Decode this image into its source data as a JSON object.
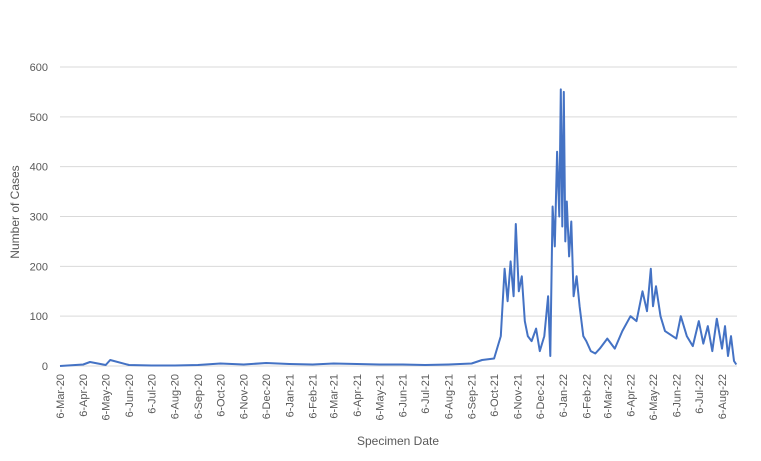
{
  "chart_data": {
    "type": "line",
    "xlabel": "Specimen Date",
    "ylabel": "Number of Cases",
    "ylim": [
      0,
      600
    ],
    "yticks": [
      0,
      100,
      200,
      300,
      400,
      500,
      600
    ],
    "grid": true,
    "legend": "none",
    "x_tick_labels": [
      "6-Mar-20",
      "6-Apr-20",
      "6-May-20",
      "6-Jun-20",
      "6-Jul-20",
      "6-Aug-20",
      "6-Sep-20",
      "6-Oct-20",
      "6-Nov-20",
      "6-Dec-20",
      "6-Jan-21",
      "6-Feb-21",
      "6-Mar-21",
      "6-Apr-21",
      "6-May-21",
      "6-Jun-21",
      "6-Jul-21",
      "6-Aug-21",
      "6-Sep-21",
      "6-Oct-21",
      "6-Nov-21",
      "6-Dec-21",
      "6-Jan-22",
      "6-Feb-22",
      "6-Mar-22",
      "6-Apr-22",
      "6-May-22",
      "6-Jun-22",
      "6-Jul-22",
      "6-Aug-22"
    ],
    "series": [
      {
        "color": "#4472c4",
        "x": [
          "2020-03-06",
          "2020-04-06",
          "2020-04-15",
          "2020-05-06",
          "2020-05-12",
          "2020-06-06",
          "2020-07-06",
          "2020-08-06",
          "2020-09-06",
          "2020-10-06",
          "2020-11-06",
          "2020-12-06",
          "2021-01-06",
          "2021-02-06",
          "2021-03-06",
          "2021-04-06",
          "2021-05-06",
          "2021-06-06",
          "2021-07-06",
          "2021-08-06",
          "2021-09-06",
          "2021-09-20",
          "2021-10-06",
          "2021-10-15",
          "2021-10-20",
          "2021-10-24",
          "2021-10-28",
          "2021-11-01",
          "2021-11-04",
          "2021-11-08",
          "2021-11-12",
          "2021-11-16",
          "2021-11-20",
          "2021-11-25",
          "2021-12-01",
          "2021-12-06",
          "2021-12-12",
          "2021-12-17",
          "2021-12-20",
          "2021-12-23",
          "2021-12-26",
          "2021-12-29",
          "2022-01-01",
          "2022-01-03",
          "2022-01-05",
          "2022-01-07",
          "2022-01-09",
          "2022-01-11",
          "2022-01-14",
          "2022-01-17",
          "2022-01-20",
          "2022-01-24",
          "2022-01-28",
          "2022-02-02",
          "2022-02-06",
          "2022-02-12",
          "2022-02-18",
          "2022-02-24",
          "2022-03-06",
          "2022-03-16",
          "2022-03-26",
          "2022-04-06",
          "2022-04-14",
          "2022-04-22",
          "2022-04-28",
          "2022-05-03",
          "2022-05-06",
          "2022-05-10",
          "2022-05-16",
          "2022-05-22",
          "2022-06-01",
          "2022-06-06",
          "2022-06-12",
          "2022-06-20",
          "2022-06-28",
          "2022-07-06",
          "2022-07-12",
          "2022-07-18",
          "2022-07-24",
          "2022-07-30",
          "2022-08-06",
          "2022-08-10",
          "2022-08-14",
          "2022-08-18",
          "2022-08-22",
          "2022-08-25"
        ],
        "y": [
          0,
          3,
          8,
          2,
          12,
          2,
          1,
          1,
          2,
          5,
          3,
          6,
          4,
          3,
          5,
          4,
          3,
          3,
          2,
          3,
          5,
          12,
          15,
          60,
          195,
          130,
          210,
          140,
          285,
          150,
          180,
          90,
          60,
          50,
          75,
          30,
          60,
          140,
          20,
          320,
          240,
          430,
          300,
          555,
          280,
          550,
          250,
          330,
          220,
          290,
          140,
          180,
          120,
          60,
          50,
          30,
          25,
          35,
          55,
          35,
          70,
          100,
          90,
          150,
          110,
          195,
          120,
          160,
          100,
          70,
          60,
          55,
          100,
          60,
          40,
          90,
          45,
          80,
          30,
          95,
          35,
          80,
          20,
          60,
          10,
          3
        ]
      }
    ]
  }
}
